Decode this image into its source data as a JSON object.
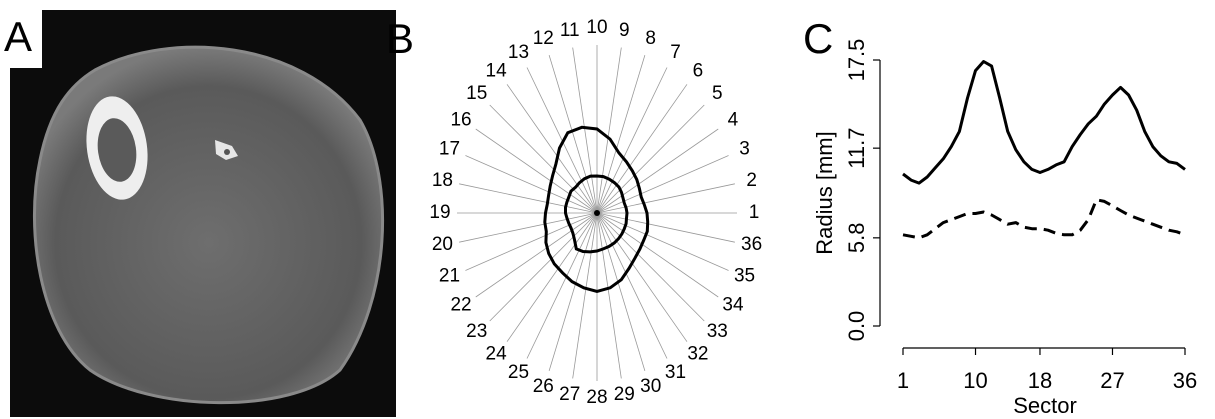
{
  "panel_labels": [
    "A",
    "B",
    "C"
  ],
  "chart_data": {
    "type": "line",
    "x": [
      1,
      2,
      3,
      4,
      5,
      6,
      7,
      8,
      9,
      10,
      11,
      12,
      13,
      14,
      15,
      16,
      17,
      18,
      19,
      20,
      21,
      22,
      23,
      24,
      25,
      26,
      27,
      28,
      29,
      30,
      31,
      32,
      33,
      34,
      35,
      36
    ],
    "xlabel": "Sector",
    "ylabel": "Radius [mm]",
    "xlim": [
      1,
      36
    ],
    "xticks": [
      1,
      10,
      18,
      27,
      36
    ],
    "ylim": [
      0,
      17.5
    ],
    "yticks": [
      {
        "value": 0,
        "label": "0.0"
      },
      5.8,
      11.7,
      17.5
    ],
    "series": [
      {
        "color": "#000000",
        "dashed": false,
        "values": [
          10.0,
          9.6,
          9.4,
          9.8,
          10.4,
          11.0,
          11.8,
          12.8,
          15.0,
          16.8,
          17.4,
          17.1,
          15.0,
          12.8,
          11.6,
          10.8,
          10.3,
          10.1,
          10.3,
          10.6,
          10.8,
          11.8,
          12.6,
          13.3,
          13.8,
          14.6,
          15.2,
          15.7,
          15.2,
          14.2,
          12.8,
          11.8,
          11.2,
          10.8,
          10.7,
          10.3
        ]
      },
      {
        "color": "#000000",
        "dashed": true,
        "values": [
          6.0,
          5.9,
          5.8,
          6.0,
          6.4,
          6.8,
          7.0,
          7.2,
          7.4,
          7.4,
          7.5,
          7.3,
          7.0,
          6.7,
          6.8,
          6.5,
          6.4,
          6.4,
          6.3,
          6.1,
          6.0,
          6.0,
          6.3,
          7.0,
          8.3,
          8.2,
          7.9,
          7.6,
          7.3,
          7.1,
          6.9,
          6.7,
          6.5,
          6.3,
          6.2,
          6.0
        ]
      }
    ]
  }
}
